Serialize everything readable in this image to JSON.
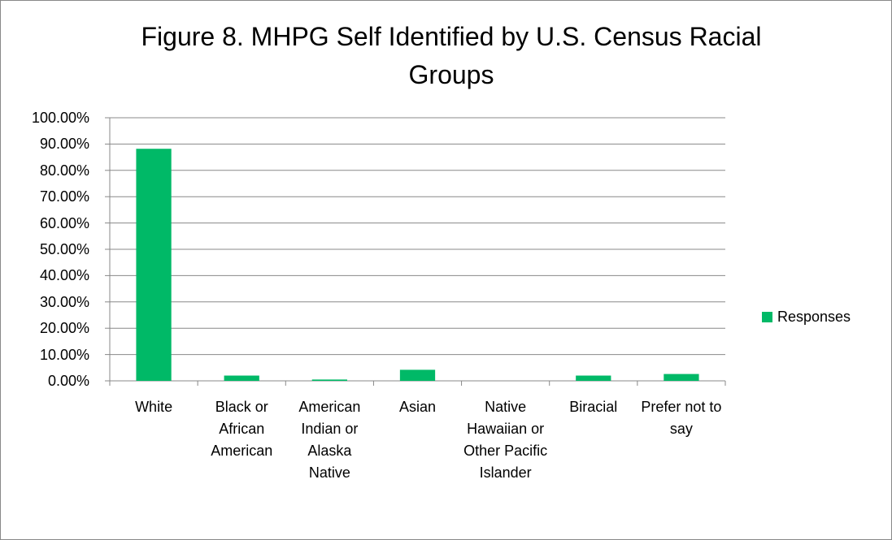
{
  "chart_data": {
    "type": "bar",
    "title": "Figure 8. MHPG Self Identified by U.S. Census Racial Groups",
    "categories": [
      "White",
      "Black or African American",
      "American Indian or Alaska Native",
      "Asian",
      "Native Hawaiian or Other Pacific Islander",
      "Biracial",
      "Prefer not to say"
    ],
    "series": [
      {
        "name": "Responses",
        "color": "#00b967",
        "values": [
          88.2,
          2.0,
          0.5,
          4.2,
          0,
          2.0,
          2.6
        ]
      }
    ],
    "ylim": [
      0,
      100
    ],
    "yticks": [
      {
        "value": 0,
        "label": "0.00%"
      },
      {
        "value": 10,
        "label": "10.00%"
      },
      {
        "value": 20,
        "label": "20.00%"
      },
      {
        "value": 30,
        "label": "30.00%"
      },
      {
        "value": 40,
        "label": "40.00%"
      },
      {
        "value": 50,
        "label": "50.00%"
      },
      {
        "value": 60,
        "label": "60.00%"
      },
      {
        "value": 70,
        "label": "70.00%"
      },
      {
        "value": 80,
        "label": "80.00%"
      },
      {
        "value": 90,
        "label": "90.00%"
      },
      {
        "value": 100,
        "label": "100.00%"
      }
    ],
    "grid": true,
    "legend": "right"
  }
}
